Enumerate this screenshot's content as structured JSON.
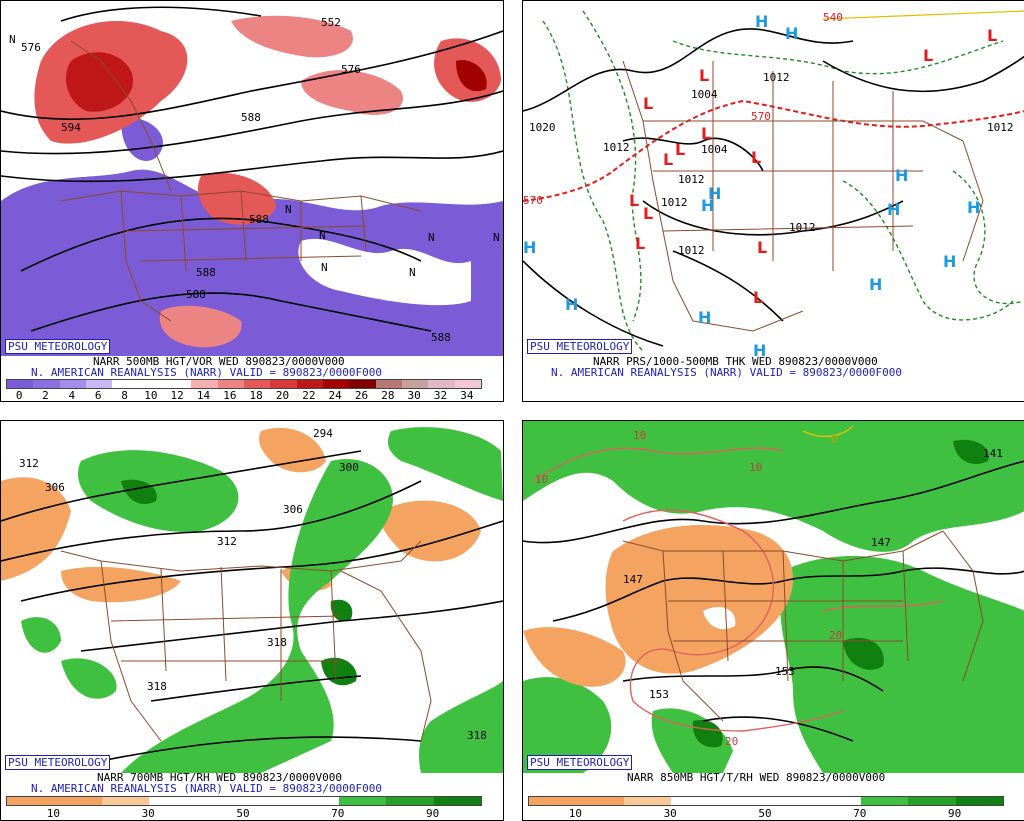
{
  "panels": {
    "p1": {
      "badge": "PSU METEOROLOGY",
      "line1": "NARR 500MB HGT/VOR WED 890823/0000V000",
      "line2": "N. AMERICAN REANALYSIS (NARR) VALID = 890823/0000F000",
      "scale_ticks": [
        "0",
        "2",
        "4",
        "6",
        "8",
        "10",
        "12",
        "14",
        "16",
        "18",
        "20",
        "22",
        "24",
        "26",
        "28",
        "30",
        "32",
        "34"
      ],
      "scale_colors": [
        "#7b5cd6",
        "#8e6fe0",
        "#a58cea",
        "#c8b8f4",
        "#ffffff",
        "#ffffff",
        "#ffffff",
        "#f4b0b0",
        "#ec8484",
        "#e45858",
        "#d83a3a",
        "#c01818",
        "#a00000",
        "#800000",
        "#b87878",
        "#c8a0a0",
        "#e0b8c8",
        "#f0c8d8"
      ],
      "contour_labels": [
        "576",
        "552",
        "576",
        "594",
        "588",
        "588",
        "588",
        "588",
        "588",
        "N",
        "N",
        "N",
        "N",
        "N",
        "N",
        "N"
      ]
    },
    "p2": {
      "badge": "PSU METEOROLOGY",
      "line1": "NARR PRS/1000-500MB THK WED 890823/0000V000",
      "line2": "N. AMERICAN REANALYSIS (NARR) VALID = 890823/0000F000",
      "isobar_labels": [
        "1020",
        "1004",
        "1012",
        "1004",
        "1012",
        "1012",
        "1012",
        "1012",
        "1012",
        "1012"
      ],
      "thickness_labels": [
        "570",
        "570",
        "540"
      ],
      "highs": [
        "H",
        "H",
        "H",
        "H",
        "H",
        "H",
        "H",
        "H",
        "H",
        "H",
        "H",
        "H",
        "H"
      ],
      "lows": [
        "L",
        "L",
        "L",
        "L",
        "L",
        "L",
        "L",
        "L",
        "L",
        "L",
        "L",
        "L",
        "L"
      ],
      "colors": {
        "high": "#1e9be0",
        "low": "#e01e1e",
        "thickness": "#e01e1e",
        "isobar": "#000000",
        "dewpoint": "#1e8c1e"
      }
    },
    "p3": {
      "badge": "PSU METEOROLOGY",
      "line1": "NARR 700MB HGT/RH WED 890823/0000V000",
      "line2": "N. AMERICAN REANALYSIS (NARR) VALID = 890823/0000F000",
      "scale_ticks": [
        "10",
        "30",
        "50",
        "70",
        "90"
      ],
      "scale_colors": [
        "#f4a460",
        "#f4a460",
        "#f8c898",
        "#ffffff",
        "#ffffff",
        "#ffffff",
        "#ffffff",
        "#40c040",
        "#28a028",
        "#108010"
      ],
      "contour_labels": [
        "312",
        "306",
        "294",
        "300",
        "306",
        "312",
        "318",
        "318",
        "318"
      ]
    },
    "p4": {
      "badge": "PSU METEOROLOGY",
      "line1": "NARR 850MB HGT/T/RH WED 890823/0000V000",
      "scale_ticks": [
        "10",
        "30",
        "50",
        "70",
        "90"
      ],
      "scale_colors": [
        "#f4a460",
        "#f4a460",
        "#f8c898",
        "#ffffff",
        "#ffffff",
        "#ffffff",
        "#ffffff",
        "#40c040",
        "#28a028",
        "#108010"
      ],
      "contour_labels": [
        "10",
        "10",
        "10",
        "147",
        "147",
        "153",
        "153",
        "141"
      ],
      "temp_labels": [
        "20",
        "20",
        "0"
      ]
    }
  }
}
